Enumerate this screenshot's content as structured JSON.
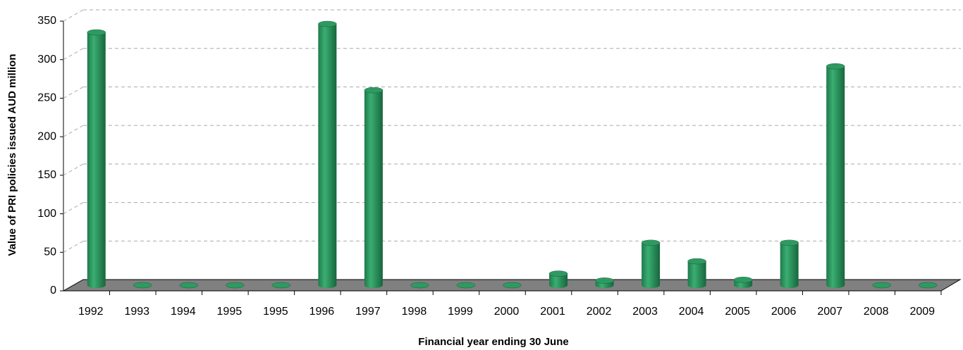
{
  "chart_data": {
    "type": "bar",
    "x_label": "Financial year ending 30 June",
    "y_label": "Value of PRI policies issued AUD million",
    "categories": [
      "1992",
      "1993",
      "1994",
      "1995",
      "1995",
      "1996",
      "1997",
      "1998",
      "1999",
      "2000",
      "2001",
      "2002",
      "2003",
      "2004",
      "2005",
      "2006",
      "2007",
      "2008",
      "2009"
    ],
    "values": [
      328,
      0,
      0,
      0,
      0,
      339,
      253,
      0,
      0,
      0,
      15,
      6,
      55,
      31,
      7,
      55,
      284,
      0,
      0
    ],
    "color": "#2e9a62",
    "ylim": [
      0,
      350
    ],
    "yticks": [
      0,
      50,
      100,
      150,
      200,
      250,
      300,
      350
    ],
    "grid": true
  }
}
